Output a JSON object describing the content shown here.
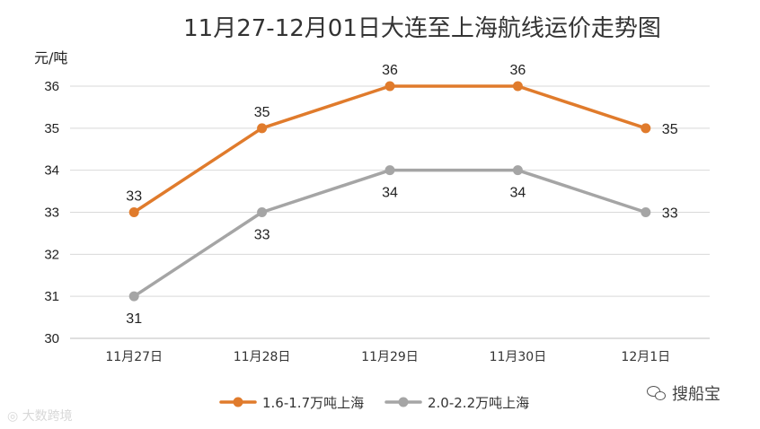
{
  "chart_data": {
    "type": "line",
    "title": "11月27-12月01日大连至上海航线运价走势图",
    "ylabel": "元/吨",
    "xlabel": "",
    "categories": [
      "11月27日",
      "11月28日",
      "11月29日",
      "11月30日",
      "12月1日"
    ],
    "ylim": [
      30,
      36
    ],
    "yticks": [
      30,
      31,
      32,
      33,
      34,
      35,
      36
    ],
    "grid": true,
    "legend_position": "bottom",
    "series": [
      {
        "name": "1.6-1.7万吨上海",
        "values": [
          33,
          35,
          36,
          36,
          35
        ],
        "color": "#E07B2C"
      },
      {
        "name": "2.0-2.2万吨上海",
        "values": [
          31,
          33,
          34,
          34,
          33
        ],
        "color": "#A5A5A5"
      }
    ]
  },
  "watermark_left": "大数跨境",
  "watermark_right": "搜船宝",
  "icons": {
    "watermark_left": "weibo-icon",
    "watermark_right": "wechat-icon"
  }
}
